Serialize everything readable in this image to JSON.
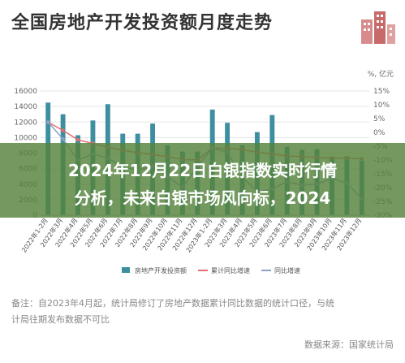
{
  "header": {
    "title": "全国房地产开发投资额月度走势",
    "unit_right": "%, 亿元"
  },
  "banner": {
    "line1": "2024年12月22日白银指数实时行情",
    "line2": "分析，未来白银市场风向标，2024"
  },
  "footer": {
    "note_line1": "备注：自2023年4月起，统计局修订了房地产数据累计同比数据的统计口径，与统",
    "note_line2": "计局往期发布数据不可比",
    "source": "数据来源：国家统计局"
  },
  "colors": {
    "bar": "#3d8fa0",
    "cum": "#e07070",
    "yoy": "#8aa0c8",
    "banner": "#54823c"
  },
  "chart_data": {
    "type": "bar",
    "categories": [
      "2022年1-2月",
      "2022年3月",
      "2022年4月",
      "2022年5月",
      "2022年6月",
      "2022年7月",
      "2022年8月",
      "2022年9月",
      "2022年10月",
      "2022年11月",
      "2022年12月",
      "2023年1-2月",
      "2023年3月",
      "2023年4月",
      "2023年5月",
      "2023年6月",
      "2023年7月",
      "2023年8月",
      "2023年9月",
      "2023年10月",
      "2023年11月",
      "2023年12月"
    ],
    "ylim_left": [
      0,
      16000
    ],
    "yticks_left": [
      0,
      2000,
      4000,
      6000,
      8000,
      10000,
      12000,
      14000,
      16000
    ],
    "ylim_right": [
      -30,
      15
    ],
    "yticks_right": [
      "15%",
      "10%",
      "5%",
      "0%",
      "-5%",
      "-10%",
      "-15%",
      "-20%",
      "-25%",
      "-30%"
    ],
    "series": [
      {
        "name": "房地产开发投资额",
        "kind": "bar",
        "values": [
          14500,
          13000,
          10300,
          12200,
          14300,
          10500,
          10500,
          11800,
          9000,
          8200,
          8200,
          13600,
          11900,
          9000,
          10700,
          12900,
          8800,
          8400,
          8500,
          7500,
          7600,
          7000
        ]
      },
      {
        "name": "累计同比增速",
        "kind": "line",
        "values": [
          3.7,
          0.7,
          -2.7,
          -4.0,
          -5.4,
          -6.4,
          -7.4,
          -8.0,
          -8.8,
          -9.8,
          -10.0,
          -5.7,
          -5.8,
          -6.2,
          -7.2,
          -7.9,
          -8.5,
          -8.8,
          -9.1,
          -9.3,
          -9.4,
          -9.6
        ]
      },
      {
        "name": "同比增速",
        "kind": "line",
        "values": [
          3.7,
          -2.4,
          -10.1,
          -7.8,
          -9.4,
          -12.3,
          -13.8,
          -12.1,
          -16.0,
          -19.9,
          -12.2,
          -5.7,
          -7.2,
          -16.2,
          -21.5,
          -20.5,
          -17.8,
          -19.1,
          -18.7,
          -16.7,
          -18.4,
          -24.0
        ]
      }
    ]
  }
}
